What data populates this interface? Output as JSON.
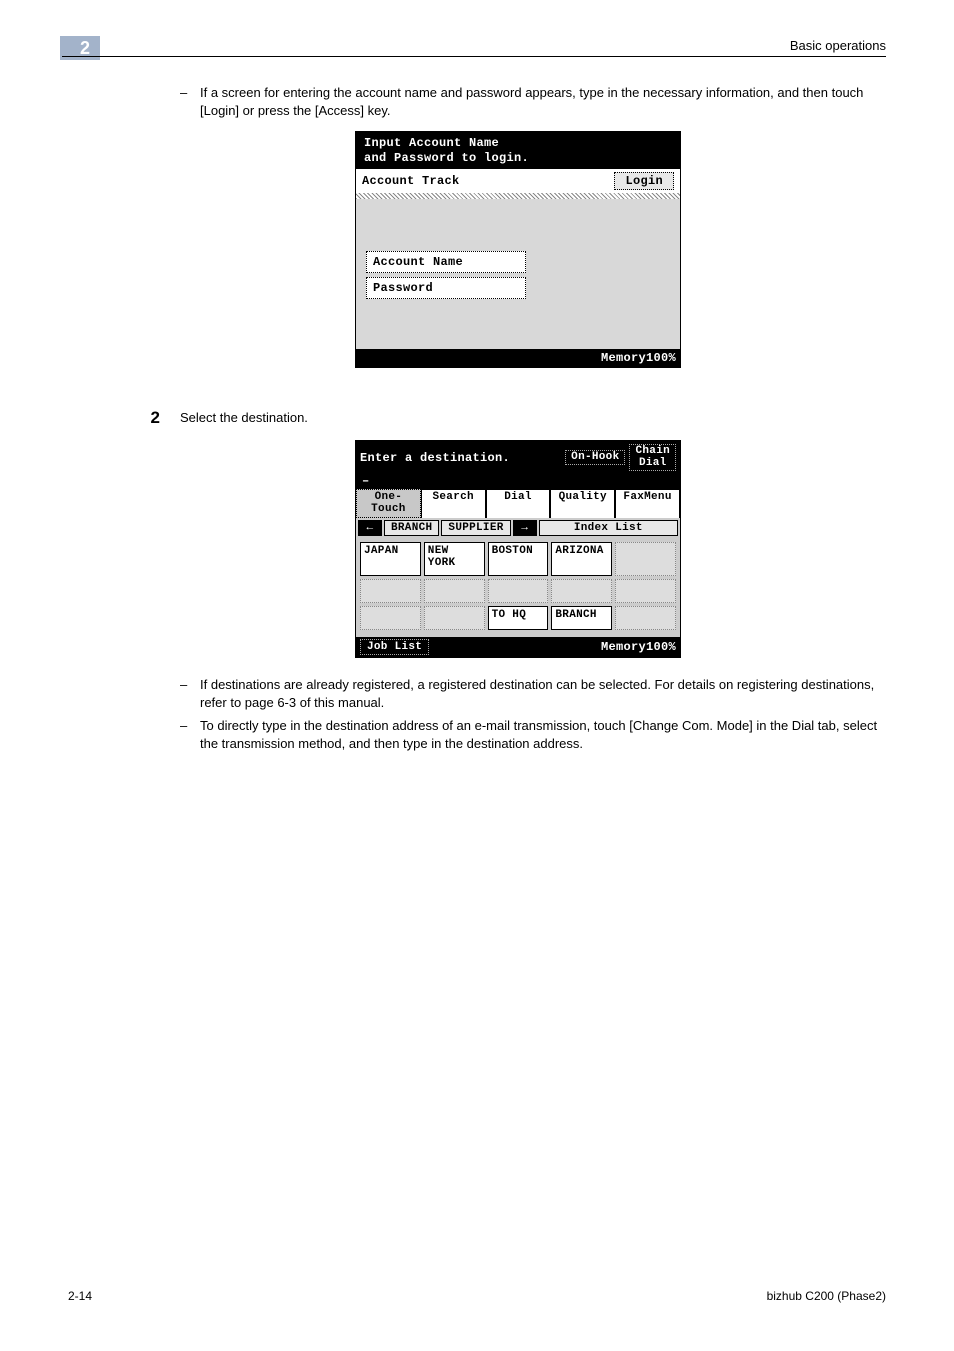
{
  "header": {
    "chapter_number": "2",
    "section_title": "Basic operations"
  },
  "intro_note": {
    "dash": "–",
    "text": "If a screen for entering the account name and password appears, type in the necessary information, and then touch [Login] or press the [Access] key."
  },
  "screen1": {
    "line1": "Input Account Name",
    "line2": "and Password to login.",
    "account_track": "Account Track",
    "login_button": "Login",
    "field_account": "Account Name",
    "field_password": "Password",
    "memory": "Memory100%"
  },
  "step2": {
    "number": "2",
    "text": "Select the destination."
  },
  "screen2": {
    "header_text": "Enter a destination.",
    "on_hook": "On-Hook",
    "chain_dial_l1": "Chain",
    "chain_dial_l2": "Dial",
    "cursor": "–",
    "tabs": {
      "one_touch_l1": "One-",
      "one_touch_l2": "Touch",
      "search": "Search",
      "dial": "Dial",
      "quality": "Quality",
      "fax_menu": "FaxMenu"
    },
    "nav": {
      "left_arrow": "←",
      "branch": "BRANCH",
      "supplier": "SUPPLIER",
      "right_arrow": "→",
      "index_list": "Index List"
    },
    "grid": {
      "r1": [
        "JAPAN",
        "NEW YORK",
        "BOSTON",
        "ARIZONA",
        ""
      ],
      "r2": [
        "",
        "",
        "",
        "",
        ""
      ],
      "r3": [
        "",
        "",
        "TO HQ",
        "BRANCH",
        ""
      ]
    },
    "job_list": "Job List",
    "memory": "Memory100%"
  },
  "notes": {
    "dash": "–",
    "n1": "If destinations are already registered, a registered destination can be selected. For details on registering destinations, refer to page 6-3 of this manual.",
    "n2": "To directly type in the destination address of an e-mail transmission, touch [Change Com. Mode] in the Dial tab, select the transmission method, and then type in the destination address."
  },
  "footer": {
    "page": "2-14",
    "model": "bizhub C200 (Phase2)"
  }
}
